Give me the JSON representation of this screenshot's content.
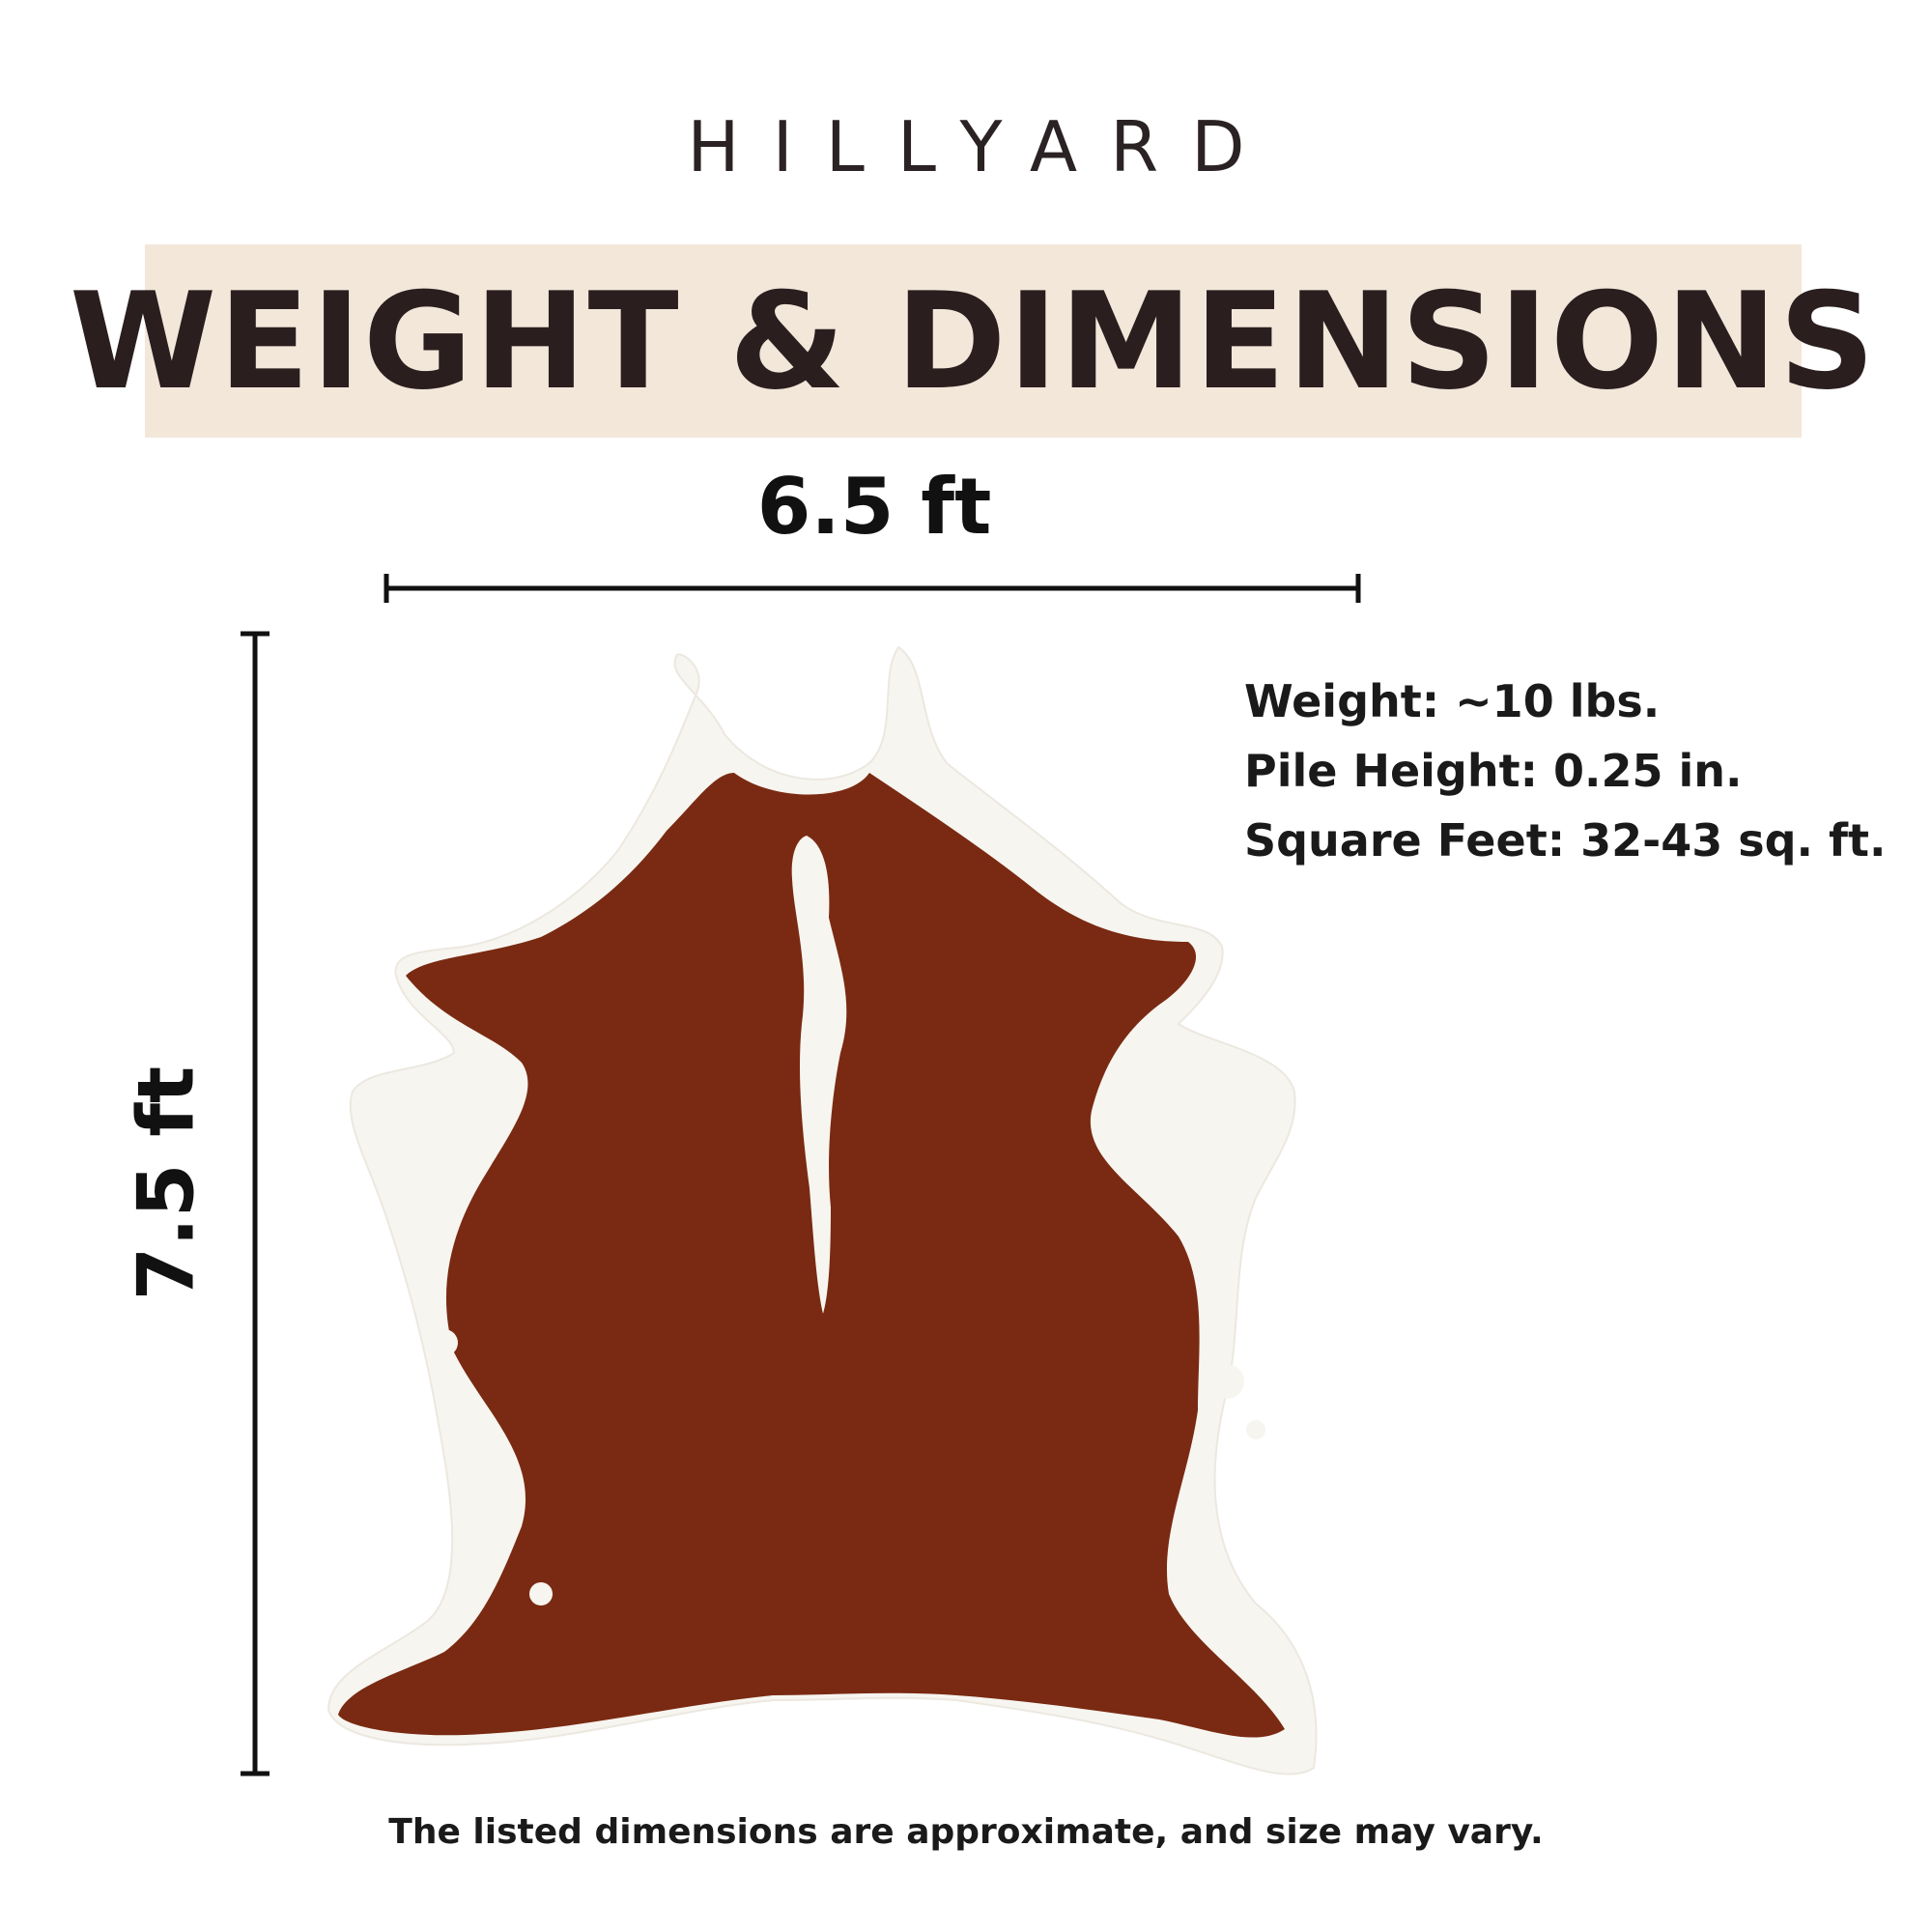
{
  "brand": "HILLYARD",
  "banner": {
    "title": "WEIGHT & DIMENSIONS",
    "background": "#f3e7da"
  },
  "dimensions": {
    "width_label": "6.5 ft",
    "height_label": "7.5 ft"
  },
  "specs": [
    "Weight: ~10 lbs.",
    "Pile Height: 0.25 in.",
    "Square Feet: 32-43 sq. ft."
  ],
  "disclaimer": "The listed dimensions are approximate, and size may vary.",
  "product": {
    "image": "cowhide-rug",
    "colors": {
      "hide_brown": "#7a2a12",
      "hide_white": "#f7f5f0"
    }
  }
}
